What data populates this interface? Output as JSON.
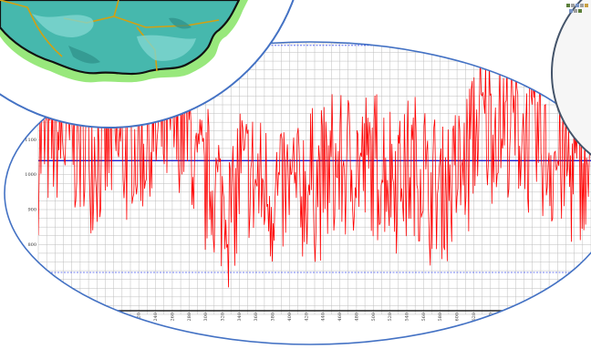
{
  "chart_data": {
    "type": "line",
    "title": "",
    "xlabel": "",
    "ylabel": "",
    "y_ticks": [
      "800",
      "900",
      "1000",
      "1100",
      "1200",
      "1300"
    ],
    "x_ticks": [
      "220",
      "240",
      "260",
      "280",
      "300",
      "320",
      "340",
      "360",
      "380",
      "400",
      "420",
      "440",
      "460",
      "480",
      "500",
      "520",
      "540",
      "560",
      "580",
      "600",
      "620",
      "640",
      "660",
      "680",
      "700",
      "720",
      "740"
    ],
    "x_range": [
      100,
      760
    ],
    "ylim": [
      600,
      1500
    ],
    "grid": true,
    "series": [
      {
        "color": "#ff0000",
        "seed": 7,
        "point_count": 620,
        "x": [
          100,
          760
        ],
        "values_summary": {
          "min": 650,
          "max": 1500,
          "mean": 1040
        }
      }
    ],
    "reference_lines": [
      {
        "kind": "mean",
        "value": 1040,
        "color": "#1c1ccc"
      },
      {
        "kind": "upper",
        "value": 1370,
        "color": "#4455ee"
      },
      {
        "kind": "lower",
        "value": 720,
        "color": "#4455ee"
      }
    ]
  },
  "colors": {
    "frame": "#4472c4",
    "grid": "#bdbdbd",
    "series": "#ff0000",
    "map_outer": "#98e87c",
    "map_inner": "#46b8ad",
    "map_shade": "#7fd6d0",
    "map_dark": "#2e8f88"
  },
  "icons": {
    "right_panel": "toolbar-icons"
  }
}
